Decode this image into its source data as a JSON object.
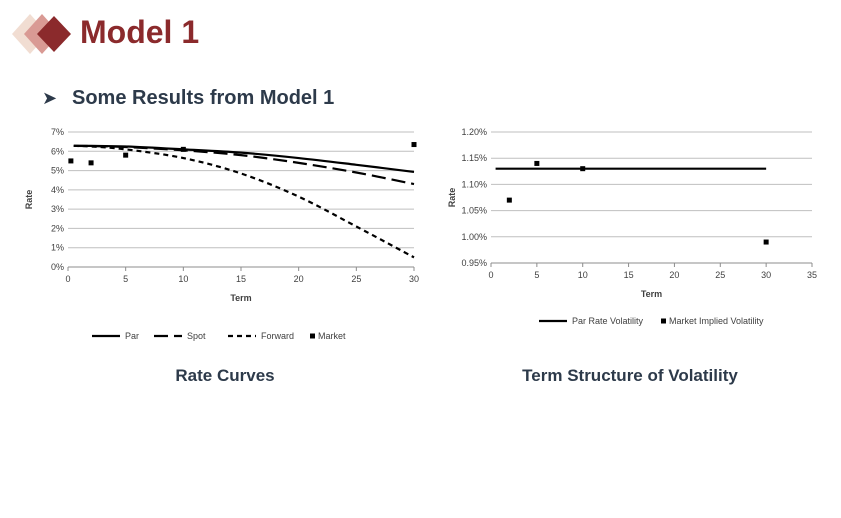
{
  "header": {
    "title": "Model 1",
    "colors": {
      "brand": "#8b2a2c",
      "diamond_mid": "#d99a94",
      "diamond_light": "#f1ddd2"
    }
  },
  "section": {
    "bullet_icon": "arrow-bullet-icon",
    "subtitle": "Some Results from Model 1"
  },
  "captions": {
    "left": "Rate Curves",
    "right": "Term Structure of Volatility"
  },
  "chart_data": [
    {
      "type": "line",
      "ylabel": "Rate",
      "xlabel": "Term",
      "xlim": [
        0,
        30
      ],
      "ylim": [
        0,
        0.07
      ],
      "x_ticks": [
        0,
        5,
        10,
        15,
        20,
        25,
        30
      ],
      "x_tick_labels": [
        "0",
        "5",
        "10",
        "15",
        "20",
        "25",
        "30"
      ],
      "y_ticks": [
        0,
        0.01,
        0.02,
        0.03,
        0.04,
        0.05,
        0.06,
        0.07
      ],
      "y_tick_labels": [
        "0%",
        "1%",
        "2%",
        "3%",
        "4%",
        "5%",
        "6%",
        "7%"
      ],
      "grid": true,
      "legend_position": "bottom",
      "series": [
        {
          "name": "Par",
          "style": "solid",
          "x": [
            0.5,
            2,
            5,
            10,
            15,
            20,
            25,
            30
          ],
          "y": [
            0.0628,
            0.0628,
            0.0625,
            0.061,
            0.0593,
            0.0565,
            0.053,
            0.0493
          ]
        },
        {
          "name": "Spot",
          "style": "long-dash",
          "x": [
            0.5,
            2,
            5,
            10,
            15,
            20,
            25,
            30
          ],
          "y": [
            0.0628,
            0.0627,
            0.0622,
            0.0605,
            0.058,
            0.054,
            0.049,
            0.043
          ]
        },
        {
          "name": "Forward",
          "style": "dash",
          "x": [
            0.5,
            2,
            5,
            10,
            15,
            20,
            25,
            30
          ],
          "y": [
            0.0628,
            0.0625,
            0.061,
            0.0565,
            0.0485,
            0.0365,
            0.021,
            0.005
          ]
        },
        {
          "name": "Market",
          "style": "marker",
          "x": [
            0.25,
            2,
            5,
            10,
            30
          ],
          "y": [
            0.055,
            0.054,
            0.058,
            0.061,
            0.0635
          ]
        }
      ]
    },
    {
      "type": "line",
      "ylabel": "Rate",
      "xlabel": "Term",
      "xlim": [
        0,
        35
      ],
      "ylim": [
        0.0095,
        0.012
      ],
      "x_ticks": [
        0,
        5,
        10,
        15,
        20,
        25,
        30,
        35
      ],
      "x_tick_labels": [
        "0",
        "5",
        "10",
        "15",
        "20",
        "25",
        "30",
        "35"
      ],
      "y_ticks": [
        0.0095,
        0.01,
        0.0105,
        0.011,
        0.0115,
        0.012
      ],
      "y_tick_labels": [
        "0.95%",
        "1.00%",
        "1.05%",
        "1.10%",
        "1.15%",
        "1.20%"
      ],
      "grid": true,
      "legend_position": "bottom",
      "series": [
        {
          "name": "Par Rate Volatility",
          "style": "solid",
          "x": [
            0.5,
            30
          ],
          "y": [
            0.0113,
            0.0113
          ]
        },
        {
          "name": "Market Implied Volatility",
          "style": "marker",
          "x": [
            2,
            5,
            10,
            30
          ],
          "y": [
            0.0107,
            0.0114,
            0.0113,
            0.0099
          ]
        }
      ]
    }
  ]
}
